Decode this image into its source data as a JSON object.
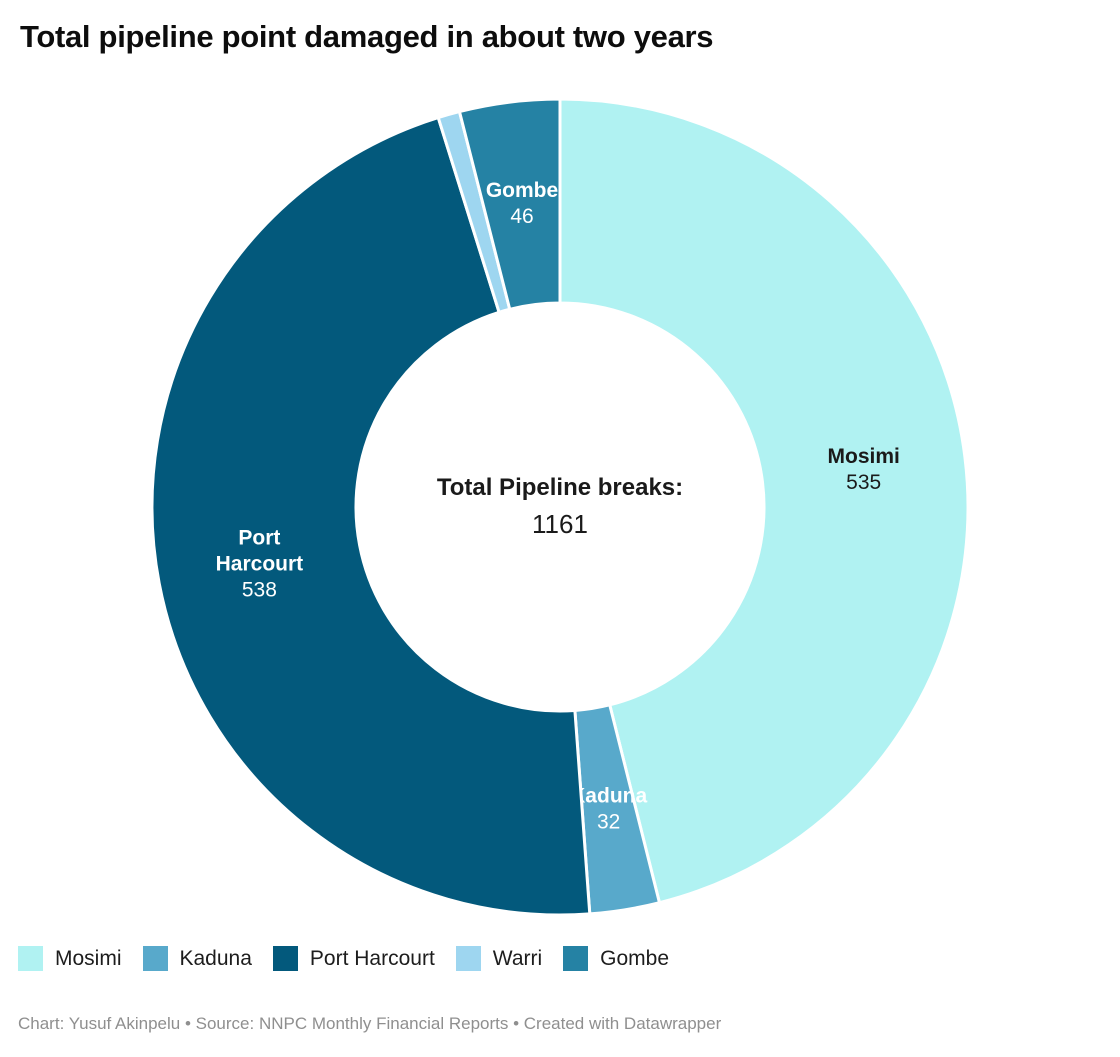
{
  "title": "Total pipeline point damaged in about two years",
  "footer": {
    "text": "Chart: Yusuf Akinpelu • Source: NNPC Monthly Financial Reports • Created with Datawrapper"
  },
  "chart_data": {
    "type": "pie",
    "subtype": "donut",
    "title": "Total pipeline point damaged in about two years",
    "total": 1161,
    "center_label": {
      "title": "Total Pipeline breaks:",
      "value": "1161"
    },
    "start_angle_deg": 0,
    "clockwise": true,
    "legend_position": "bottom",
    "stroke_color": "#ffffff",
    "slices": [
      {
        "name": "Mosimi",
        "value": 535,
        "color": "#b0f2f2",
        "label_color": "#1a1a1a",
        "name_lines": [
          "Mosimi"
        ],
        "show_label": true
      },
      {
        "name": "Kaduna",
        "value": 32,
        "color": "#58a9cb",
        "label_color": "#ffffff",
        "name_lines": [
          "Kaduna"
        ],
        "show_label": true
      },
      {
        "name": "Port Harcourt",
        "value": 538,
        "color": "#03597c",
        "label_color": "#ffffff",
        "name_lines": [
          "Port",
          "Harcourt"
        ],
        "show_label": true
      },
      {
        "name": "Warri",
        "value": 10,
        "color": "#9ed6f0",
        "label_color": "#ffffff",
        "name_lines": [
          "Warri"
        ],
        "show_label": false
      },
      {
        "name": "Gombe",
        "value": 46,
        "color": "#2582a4",
        "label_color": "#ffffff",
        "name_lines": [
          "Gombe"
        ],
        "show_label": true
      }
    ]
  }
}
